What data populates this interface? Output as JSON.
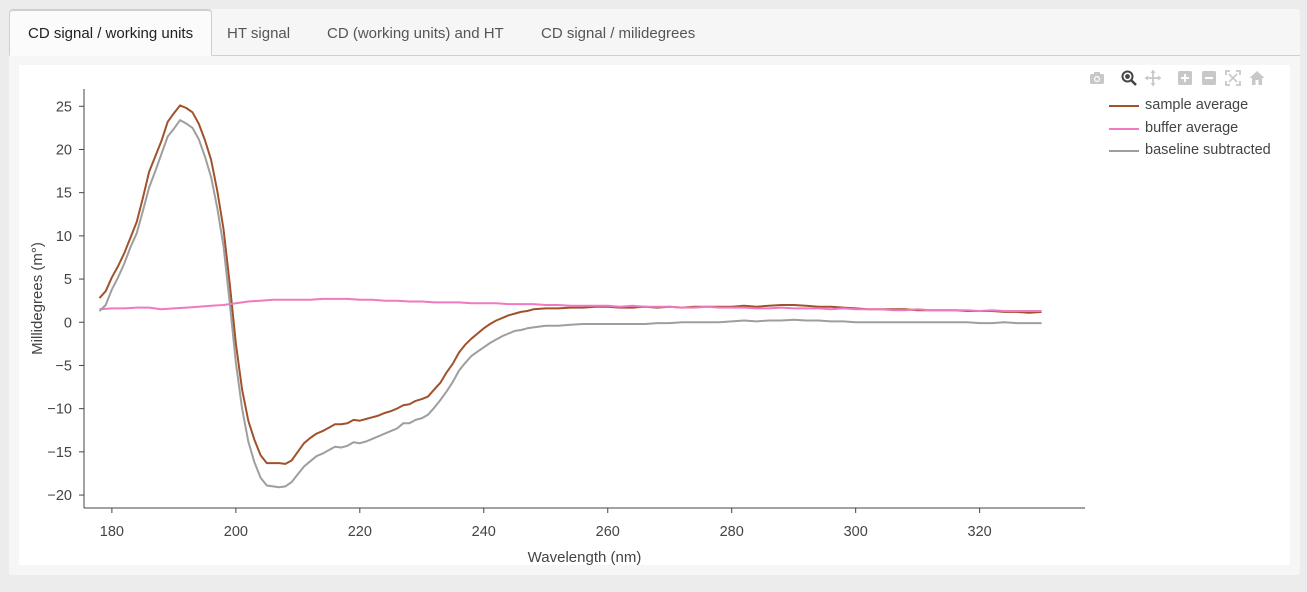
{
  "tabs": [
    {
      "label": "CD signal / working units",
      "active": true
    },
    {
      "label": "HT signal",
      "active": false
    },
    {
      "label": "CD (working units) and HT",
      "active": false
    },
    {
      "label": "CD signal / milidegrees",
      "active": false
    }
  ],
  "modebar": {
    "icons": [
      "camera-icon",
      "zoom-icon",
      "pan-icon",
      "zoom-in-icon",
      "zoom-out-icon",
      "autoscale-icon",
      "reset-axes-icon"
    ]
  },
  "colors": {
    "sample": "#a0522d",
    "buffer": "#f07ac1",
    "baseline": "#9e9e9e"
  },
  "chart_data": {
    "type": "line",
    "xlabel": "Wavelength (nm)",
    "ylabel": "Millidegrees (m°)",
    "xlim": [
      175.5,
      337
    ],
    "ylim": [
      -21.5,
      27
    ],
    "xticks": [
      180,
      200,
      220,
      240,
      260,
      280,
      300,
      320
    ],
    "yticks": [
      25,
      20,
      15,
      10,
      5,
      0,
      -5,
      -10,
      -15,
      -20
    ],
    "xtick_labels": [
      "180",
      "200",
      "220",
      "240",
      "260",
      "280",
      "300",
      "320"
    ],
    "ytick_labels": [
      "25",
      "20",
      "15",
      "10",
      "5",
      "0",
      "−5",
      "−10",
      "−15",
      "−20"
    ],
    "legend_position": "top-right",
    "series": [
      {
        "name": "sample average",
        "x": [
          178,
          179,
          180,
          181,
          182,
          183,
          184,
          185,
          186,
          187,
          188,
          189,
          190,
          191,
          192,
          193,
          194,
          195,
          196,
          197,
          198,
          199,
          200,
          201,
          202,
          203,
          204,
          205,
          206,
          207,
          208,
          209,
          210,
          211,
          212,
          213,
          214,
          215,
          216,
          217,
          218,
          219,
          220,
          221,
          222,
          223,
          224,
          225,
          226,
          227,
          228,
          229,
          230,
          231,
          232,
          233,
          234,
          235,
          236,
          237,
          238,
          239,
          240,
          241,
          242,
          243,
          244,
          245,
          246,
          247,
          248,
          250,
          252,
          254,
          256,
          258,
          260,
          262,
          264,
          266,
          268,
          270,
          272,
          274,
          276,
          278,
          280,
          282,
          284,
          286,
          288,
          290,
          292,
          294,
          296,
          298,
          300,
          302,
          304,
          306,
          308,
          310,
          312,
          314,
          316,
          318,
          320,
          322,
          324,
          326,
          328,
          330
        ],
        "y": [
          2.8,
          3.6,
          5.2,
          6.5,
          8.0,
          9.8,
          11.6,
          14.4,
          17.4,
          19.2,
          21.0,
          23.2,
          24.2,
          25.1,
          24.8,
          24.3,
          23.0,
          21.1,
          18.8,
          15.2,
          10.8,
          4.5,
          -2.5,
          -7.8,
          -11.4,
          -13.6,
          -15.4,
          -16.3,
          -16.3,
          -16.3,
          -16.4,
          -16.0,
          -15.0,
          -14.0,
          -13.4,
          -12.9,
          -12.6,
          -12.2,
          -11.8,
          -11.8,
          -11.7,
          -11.3,
          -11.4,
          -11.2,
          -11.0,
          -10.8,
          -10.5,
          -10.3,
          -10.0,
          -9.6,
          -9.5,
          -9.1,
          -8.9,
          -8.6,
          -7.8,
          -7.0,
          -5.8,
          -4.8,
          -3.5,
          -2.6,
          -1.9,
          -1.3,
          -0.7,
          -0.2,
          0.2,
          0.5,
          0.8,
          1.0,
          1.2,
          1.3,
          1.5,
          1.6,
          1.6,
          1.7,
          1.7,
          1.8,
          1.8,
          1.7,
          1.7,
          1.8,
          1.7,
          1.8,
          1.7,
          1.8,
          1.8,
          1.8,
          1.8,
          1.9,
          1.8,
          1.9,
          2.0,
          2.0,
          1.9,
          1.8,
          1.8,
          1.7,
          1.6,
          1.5,
          1.5,
          1.5,
          1.5,
          1.4,
          1.4,
          1.4,
          1.4,
          1.3,
          1.3,
          1.3,
          1.2,
          1.2,
          1.1,
          1.2
        ]
      },
      {
        "name": "buffer average",
        "x": [
          178,
          180,
          182,
          184,
          186,
          188,
          190,
          192,
          194,
          196,
          198,
          200,
          202,
          204,
          206,
          208,
          210,
          212,
          214,
          216,
          218,
          220,
          222,
          224,
          226,
          228,
          230,
          232,
          234,
          236,
          238,
          240,
          242,
          244,
          246,
          248,
          250,
          252,
          254,
          256,
          258,
          260,
          262,
          264,
          266,
          268,
          270,
          272,
          274,
          276,
          278,
          280,
          282,
          284,
          286,
          288,
          290,
          292,
          294,
          296,
          298,
          300,
          302,
          304,
          306,
          308,
          310,
          312,
          314,
          316,
          318,
          320,
          322,
          324,
          326,
          328,
          330
        ],
        "y": [
          1.5,
          1.6,
          1.6,
          1.7,
          1.7,
          1.5,
          1.6,
          1.7,
          1.8,
          1.9,
          2.0,
          2.2,
          2.4,
          2.5,
          2.6,
          2.6,
          2.6,
          2.6,
          2.7,
          2.7,
          2.7,
          2.6,
          2.6,
          2.5,
          2.5,
          2.4,
          2.4,
          2.3,
          2.3,
          2.3,
          2.2,
          2.2,
          2.2,
          2.1,
          2.1,
          2.1,
          2.0,
          2.0,
          1.9,
          1.9,
          1.9,
          1.9,
          1.8,
          1.9,
          1.8,
          1.8,
          1.8,
          1.7,
          1.7,
          1.8,
          1.7,
          1.7,
          1.7,
          1.6,
          1.6,
          1.7,
          1.6,
          1.6,
          1.6,
          1.5,
          1.6,
          1.5,
          1.5,
          1.5,
          1.4,
          1.4,
          1.5,
          1.4,
          1.4,
          1.4,
          1.4,
          1.3,
          1.4,
          1.3,
          1.3,
          1.3,
          1.3
        ]
      },
      {
        "name": "baseline subtracted",
        "x": [
          178,
          179,
          180,
          181,
          182,
          183,
          184,
          185,
          186,
          187,
          188,
          189,
          190,
          191,
          192,
          193,
          194,
          195,
          196,
          197,
          198,
          199,
          200,
          201,
          202,
          203,
          204,
          205,
          206,
          207,
          208,
          209,
          210,
          211,
          212,
          213,
          214,
          215,
          216,
          217,
          218,
          219,
          220,
          221,
          222,
          223,
          224,
          225,
          226,
          227,
          228,
          229,
          230,
          231,
          232,
          233,
          234,
          235,
          236,
          237,
          238,
          239,
          240,
          241,
          242,
          243,
          244,
          245,
          246,
          247,
          248,
          250,
          252,
          254,
          256,
          258,
          260,
          262,
          264,
          266,
          268,
          270,
          272,
          274,
          276,
          278,
          280,
          282,
          284,
          286,
          288,
          290,
          292,
          294,
          296,
          298,
          300,
          302,
          304,
          306,
          308,
          310,
          312,
          314,
          316,
          318,
          320,
          322,
          324,
          326,
          328,
          330
        ],
        "y": [
          1.3,
          2.0,
          3.8,
          5.2,
          6.8,
          8.7,
          10.3,
          12.9,
          15.6,
          17.5,
          19.5,
          21.5,
          22.4,
          23.4,
          23.0,
          22.5,
          21.2,
          19.2,
          16.8,
          13.2,
          8.8,
          2.3,
          -4.7,
          -10.0,
          -13.8,
          -16.2,
          -18.0,
          -18.9,
          -19.0,
          -19.1,
          -19.0,
          -18.5,
          -17.6,
          -16.7,
          -16.1,
          -15.5,
          -15.2,
          -14.8,
          -14.4,
          -14.5,
          -14.3,
          -13.9,
          -14.0,
          -13.8,
          -13.5,
          -13.2,
          -12.9,
          -12.6,
          -12.3,
          -11.7,
          -11.7,
          -11.3,
          -11.1,
          -10.7,
          -9.9,
          -9.0,
          -8.0,
          -6.9,
          -5.6,
          -4.7,
          -3.9,
          -3.4,
          -2.9,
          -2.4,
          -2.0,
          -1.6,
          -1.3,
          -1.0,
          -0.9,
          -0.7,
          -0.6,
          -0.4,
          -0.4,
          -0.3,
          -0.2,
          -0.2,
          -0.2,
          -0.2,
          -0.2,
          -0.2,
          -0.1,
          -0.1,
          0.0,
          0.0,
          0.0,
          0.0,
          0.1,
          0.2,
          0.1,
          0.2,
          0.2,
          0.3,
          0.2,
          0.2,
          0.1,
          0.1,
          0.0,
          0.0,
          0.0,
          0.0,
          0.0,
          0.0,
          0.0,
          0.0,
          0.0,
          0.0,
          -0.1,
          -0.1,
          0.0,
          -0.1,
          -0.1,
          -0.1
        ]
      }
    ]
  }
}
